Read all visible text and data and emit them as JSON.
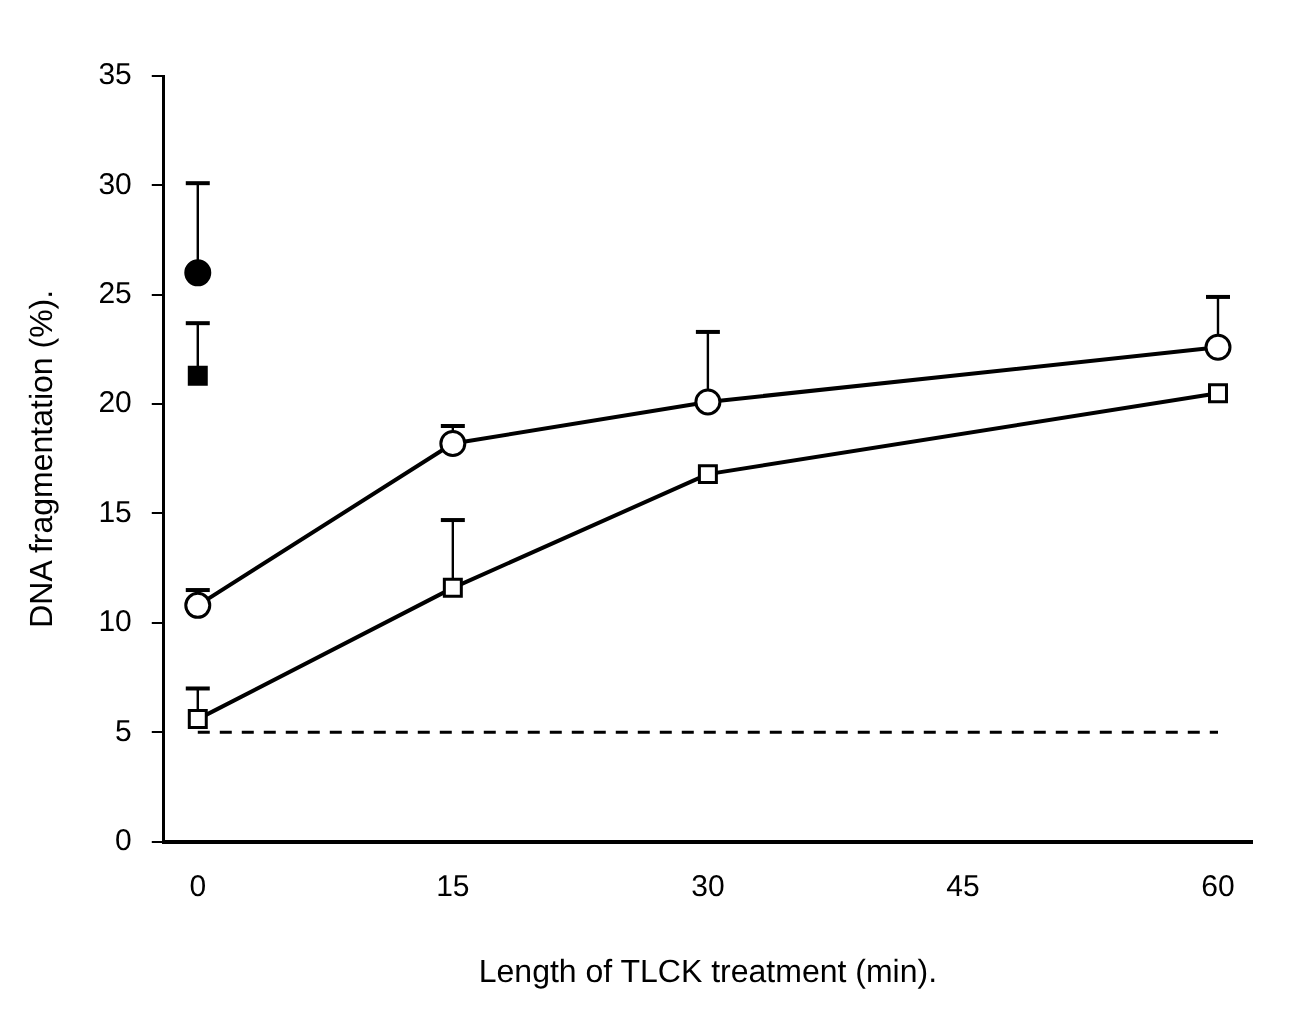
{
  "chart_data": {
    "type": "line",
    "xlabel": "Length of TLCK treatment (min).",
    "ylabel": "DNA fragmentation (%).",
    "xlim": [
      -2,
      62
    ],
    "xticks": [
      0,
      15,
      30,
      45,
      60
    ],
    "ylim": [
      0,
      35
    ],
    "yticks": [
      0,
      5,
      10,
      15,
      20,
      25,
      30,
      35
    ],
    "grid": false,
    "legend": false,
    "line_style": "solid",
    "series": [
      {
        "type": "line",
        "marker": "circle",
        "color": "#000000",
        "x": [
          0,
          15,
          30,
          60
        ],
        "values": [
          10.8,
          18.2,
          20.1,
          22.6
        ],
        "errors": [
          [
            10.8,
            11.5
          ],
          [
            18.2,
            19.0
          ],
          [
            20.1,
            23.3
          ],
          [
            22.6,
            24.9
          ]
        ]
      },
      {
        "type": "line",
        "marker": "square",
        "color": "#000000",
        "x": [
          0,
          15,
          30,
          60
        ],
        "values": [
          5.6,
          11.6,
          16.8,
          20.5
        ],
        "errors": [
          [
            5.6,
            7.0
          ],
          [
            11.6,
            14.7
          ],
          null,
          null
        ]
      },
      {
        "type": "scatter",
        "marker": "circle",
        "color": "#000000",
        "x": [
          0
        ],
        "values": [
          26.0
        ],
        "errors": [
          [
            26.0,
            30.1
          ]
        ]
      },
      {
        "type": "scatter",
        "marker": "square",
        "color": "#000000",
        "x": [
          0
        ],
        "values": [
          21.3
        ],
        "errors": [
          [
            21.3,
            23.7
          ]
        ]
      }
    ],
    "ref_lines": [
      {
        "axis": "y",
        "value": 5,
        "line_style": "dashed",
        "color": "#000000"
      }
    ]
  }
}
